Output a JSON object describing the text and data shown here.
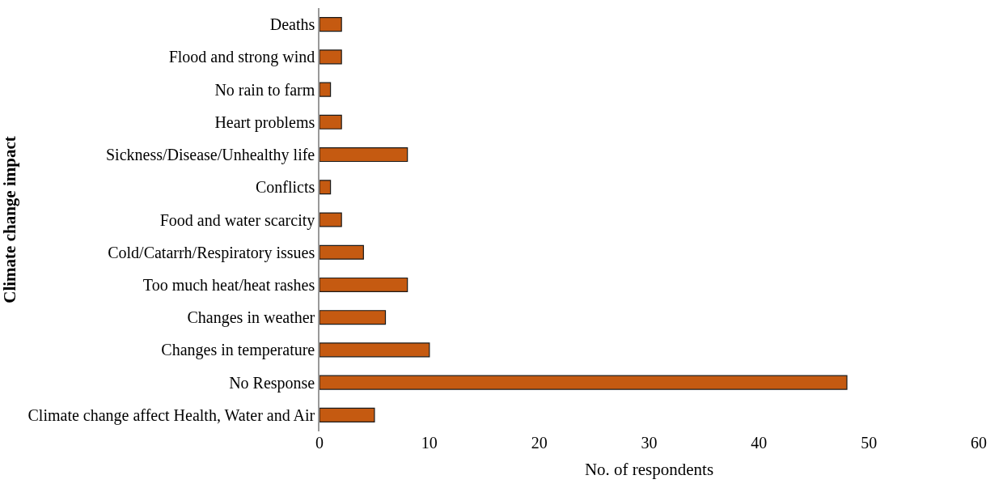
{
  "chart_data": {
    "type": "bar",
    "orientation": "horizontal",
    "xlabel": "No. of respondents",
    "ylabel": "Climate change impact",
    "categories": [
      "Deaths",
      "Flood and strong wind",
      "No rain to farm",
      "Heart problems",
      "Sickness/Disease/Unhealthy life",
      "Conflicts",
      "Food and water scarcity",
      "Cold/Catarrh/Respiratory issues",
      "Too much heat/heat rashes",
      "Changes in weather",
      "Changes in temperature",
      "No Response",
      "Climate change affect Health, Water and Air"
    ],
    "values": [
      2,
      2,
      1,
      2,
      8,
      1,
      2,
      4,
      8,
      6,
      10,
      48,
      5
    ],
    "color": "#c55a11",
    "xlim": [
      0,
      60
    ],
    "xticks": [
      0,
      10,
      20,
      30,
      40,
      50,
      60
    ]
  }
}
